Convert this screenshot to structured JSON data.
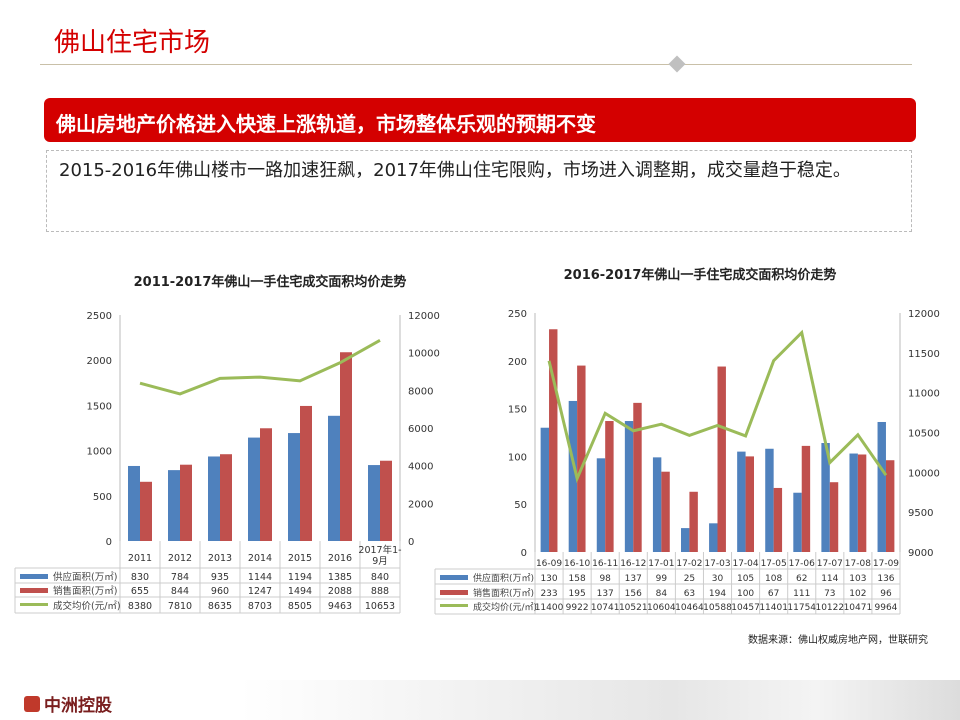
{
  "header": {
    "title": "佛山住宅市场"
  },
  "banner": {
    "text": "佛山房地产价格进入快速上涨轨道，市场整体乐观的预期不变"
  },
  "description": "2015-2016年佛山楼市一路加速狂飙，2017年佛山住宅限购，市场进入调整期，成交量趋于稳定。",
  "source": "数据来源：佛山权威房地产网，世联研究",
  "footer": {
    "logo_text": "中洲控股"
  },
  "colors": {
    "supply": "#4f81bd",
    "sales": "#c0504d",
    "price": "#9bbb59",
    "accent": "#d40000"
  },
  "chart_data": [
    {
      "type": "bar+line",
      "title": "2011-2017年佛山一手住宅成交面积均价走势",
      "categories": [
        "2011",
        "2012",
        "2013",
        "2014",
        "2015",
        "2016",
        "2017年1-9月"
      ],
      "series": [
        {
          "name": "供应面积(万㎡)",
          "type": "bar",
          "axis": "left",
          "values": [
            830,
            784,
            935,
            1144,
            1194,
            1385,
            840
          ]
        },
        {
          "name": "销售面积(万㎡)",
          "type": "bar",
          "axis": "left",
          "values": [
            655,
            844,
            960,
            1247,
            1494,
            2088,
            888
          ]
        },
        {
          "name": "成交均价(元/㎡)",
          "type": "line",
          "axis": "right",
          "values": [
            8380,
            7810,
            8635,
            8703,
            8505,
            9463,
            10653
          ]
        }
      ],
      "ylim": [
        0,
        2500
      ],
      "yticks": [
        0,
        500,
        1000,
        1500,
        2000,
        2500
      ],
      "y2lim": [
        0,
        12000
      ],
      "y2ticks": [
        0,
        2000,
        4000,
        6000,
        8000,
        10000,
        12000
      ],
      "legend": "data-table"
    },
    {
      "type": "bar+line",
      "title": "2016-2017年佛山一手住宅成交面积均价走势",
      "categories": [
        "16-09",
        "16-10",
        "16-11",
        "16-12",
        "17-01",
        "17-02",
        "17-03",
        "17-04",
        "17-05",
        "17-06",
        "17-07",
        "17-08",
        "17-09"
      ],
      "series": [
        {
          "name": "供应面积(万㎡)",
          "type": "bar",
          "axis": "left",
          "values": [
            130,
            158,
            98,
            137,
            99,
            25,
            30,
            105,
            108,
            62,
            114,
            103,
            136
          ]
        },
        {
          "name": "销售面积(万㎡)",
          "type": "bar",
          "axis": "left",
          "values": [
            233,
            195,
            137,
            156,
            84,
            63,
            194,
            100,
            67,
            111,
            73,
            102,
            96
          ]
        },
        {
          "name": "成交均价(元/㎡)",
          "type": "line",
          "axis": "right",
          "values": [
            11400,
            9922,
            10741,
            10521,
            10604,
            10464,
            10588,
            10457,
            11401,
            11754,
            10122,
            10471,
            9964
          ]
        }
      ],
      "ylim": [
        0,
        250
      ],
      "yticks": [
        0,
        50,
        100,
        150,
        200,
        250
      ],
      "y2lim": [
        9000,
        12000
      ],
      "y2ticks": [
        9000,
        9500,
        10000,
        10500,
        11000,
        11500,
        12000
      ],
      "legend": "data-table"
    }
  ]
}
